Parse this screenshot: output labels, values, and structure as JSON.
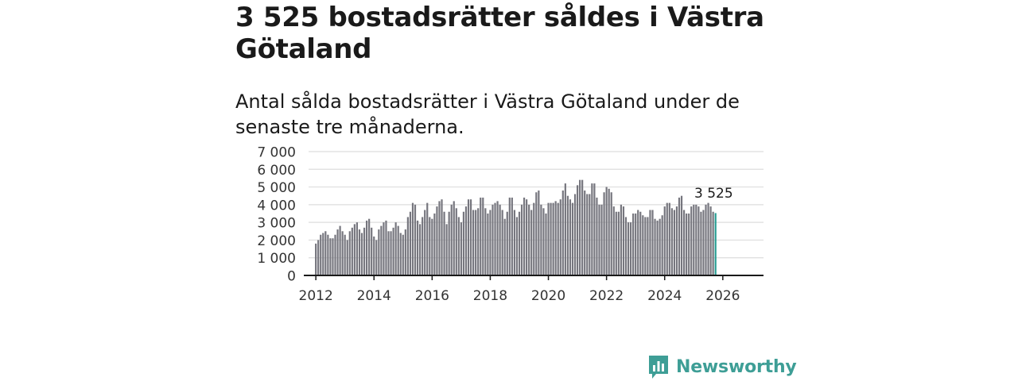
{
  "title": "3 525 bostadsrätter såldes i Västra Götaland",
  "subtitle": "Antal sålda bostadsrätter i Västra Götaland under de senaste tre månaderna.",
  "brand": {
    "name": "Newsworthy"
  },
  "colors": {
    "bar": "#76767e",
    "highlight": "#2a9d93",
    "grid": "#dddddd",
    "axis": "#1a1a1a",
    "brand": "#3e9e96"
  },
  "chart_data": {
    "type": "bar",
    "title": "Antal sålda bostadsrätter i Västra Götaland",
    "xlabel": "",
    "ylabel": "",
    "ylim": [
      0,
      7000
    ],
    "yticks": [
      0,
      1000,
      2000,
      3000,
      4000,
      5000,
      6000,
      7000
    ],
    "ytick_labels": [
      "0",
      "1 000",
      "2 000",
      "3 000",
      "4 000",
      "5 000",
      "6 000",
      "7 000"
    ],
    "xticks": [
      2012,
      2014,
      2016,
      2018,
      2020,
      2022,
      2024,
      2026
    ],
    "xtick_labels": [
      "2012",
      "2014",
      "2016",
      "2018",
      "2020",
      "2022",
      "2024",
      "2026"
    ],
    "start": {
      "year": 2012,
      "month": 1
    },
    "highlight_label": "3 525",
    "values": [
      1800,
      2000,
      2300,
      2400,
      2500,
      2300,
      2100,
      2100,
      2300,
      2600,
      2800,
      2500,
      2300,
      2000,
      2500,
      2700,
      2900,
      3000,
      2600,
      2400,
      2700,
      3100,
      3200,
      2700,
      2200,
      2000,
      2600,
      2800,
      3000,
      3100,
      2500,
      2500,
      2700,
      3000,
      2800,
      2400,
      2300,
      2600,
      3300,
      3600,
      4100,
      4000,
      3100,
      2900,
      3300,
      3700,
      4100,
      3300,
      3200,
      3500,
      3900,
      4200,
      4300,
      3600,
      2900,
      3600,
      4000,
      4200,
      3800,
      3300,
      3000,
      3600,
      3900,
      4300,
      4300,
      3700,
      3700,
      3800,
      4400,
      4400,
      3800,
      3500,
      3700,
      4000,
      4100,
      4200,
      4000,
      3700,
      3200,
      3600,
      4400,
      4400,
      3700,
      3300,
      3600,
      4000,
      4400,
      4300,
      4000,
      3700,
      4100,
      4700,
      4800,
      4000,
      3800,
      3500,
      4100,
      4100,
      4100,
      4200,
      4100,
      4300,
      4800,
      5200,
      4500,
      4300,
      4100,
      4600,
      5100,
      5400,
      5400,
      4800,
      4600,
      4600,
      5200,
      5200,
      4400,
      4000,
      4000,
      4700,
      5000,
      4900,
      4700,
      3900,
      3600,
      3600,
      4000,
      3900,
      3300,
      3000,
      3000,
      3500,
      3500,
      3700,
      3600,
      3400,
      3300,
      3300,
      3700,
      3700,
      3200,
      3100,
      3200,
      3400,
      3900,
      4100,
      4100,
      3800,
      3700,
      3900,
      4400,
      4500,
      3700,
      3500,
      3500,
      3900,
      4000,
      4000,
      3900,
      3600,
      3700,
      4000,
      4100,
      3900,
      3600,
      3525
    ]
  }
}
